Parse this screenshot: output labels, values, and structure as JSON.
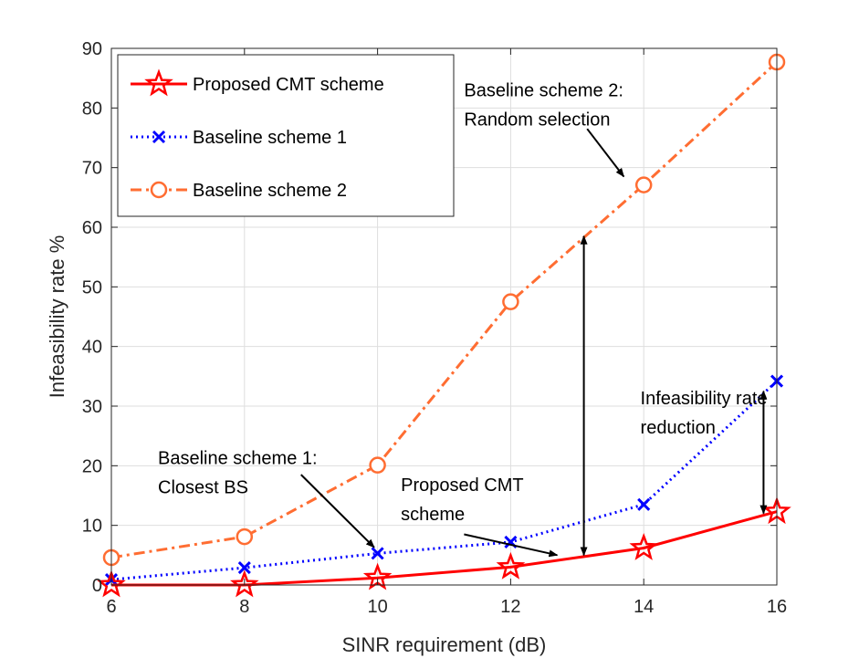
{
  "chart_data": {
    "type": "line",
    "title": "",
    "xlabel": "SINR requirement (dB)",
    "ylabel": "Infeasibility rate %",
    "xlim": [
      6,
      16
    ],
    "ylim": [
      0,
      90
    ],
    "xticks": [
      6,
      8,
      10,
      12,
      14,
      16
    ],
    "yticks": [
      0,
      10,
      20,
      30,
      40,
      50,
      60,
      70,
      80,
      90
    ],
    "grid": true,
    "legend_position": "top-left",
    "x": [
      6,
      8,
      10,
      12,
      14,
      16
    ],
    "series": [
      {
        "name": "Proposed CMT scheme",
        "values": [
          0,
          0,
          1.2,
          3,
          6.2,
          12.3
        ],
        "color": "#ff0000",
        "marker": "star",
        "line": "solid"
      },
      {
        "name": "Baseline scheme 1",
        "values": [
          0.9,
          2.9,
          5.3,
          7.2,
          13.5,
          34.2
        ],
        "color": "#0000ff",
        "marker": "x",
        "line": "dotted"
      },
      {
        "name": "Baseline scheme 2",
        "values": [
          4.6,
          8.1,
          20.1,
          47.5,
          67.1,
          87.7
        ],
        "color": "#ff6d32",
        "marker": "circle",
        "line": "dashdot"
      }
    ],
    "annotations": [
      {
        "id": "annot-baseline2",
        "lines": [
          "Baseline scheme 2:",
          "Random selection"
        ],
        "text_at": [
          11.3,
          82
        ],
        "arrow_from": [
          13.15,
          76.5
        ],
        "arrow_to": [
          13.7,
          68.5
        ]
      },
      {
        "id": "annot-baseline1",
        "lines": [
          "Baseline scheme 1:",
          "Closest BS"
        ],
        "text_at": [
          6.7,
          20.3
        ],
        "arrow_from": [
          8.85,
          18.5
        ],
        "arrow_to": [
          9.95,
          6.3
        ]
      },
      {
        "id": "annot-proposed",
        "lines": [
          "Proposed CMT",
          "scheme"
        ],
        "text_at": [
          10.35,
          15.8
        ],
        "arrow_from": [
          11.3,
          8.5
        ],
        "arrow_to": [
          12.7,
          5.0
        ]
      },
      {
        "id": "annot-reduction",
        "lines": [
          "Infeasibility rate",
          "reduction"
        ],
        "text_at": [
          13.95,
          30.3
        ],
        "arrow_from": null,
        "arrow_to": null
      }
    ],
    "double_arrows": [
      {
        "x": 13.1,
        "y_from": 5.0,
        "y_to": 58.5
      },
      {
        "x": 15.8,
        "y_from": 12.0,
        "y_to": 32.5
      }
    ]
  }
}
